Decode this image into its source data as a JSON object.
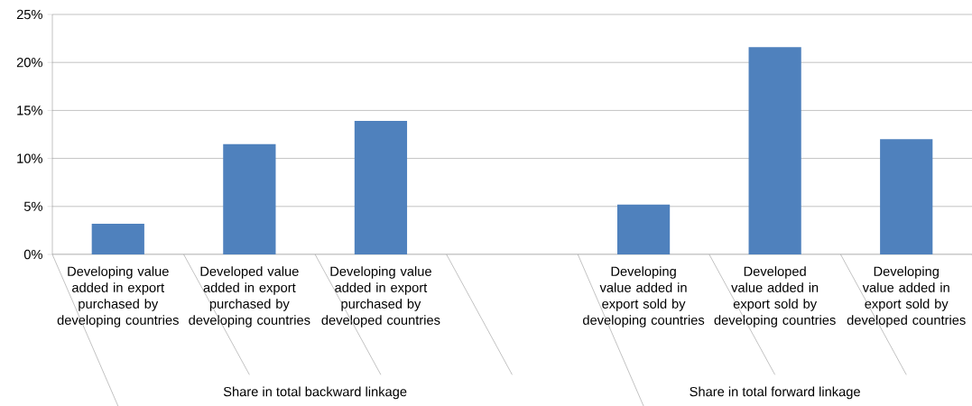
{
  "chart_data": {
    "type": "bar",
    "categories": [
      "Developing value added in export purchased by developing countries",
      "Developed value added in export purchased by developing countries",
      "Developing value added in export purchased by developed countries",
      null,
      "Developing value added in export sold by developing countries",
      "Developed value added in export sold by developing countries",
      "Developing value added in export sold by developed countries"
    ],
    "values": [
      3.2,
      11.5,
      13.9,
      null,
      5.2,
      21.6,
      12.0
    ],
    "color": "#4f81bd",
    "ylim": [
      0,
      25
    ],
    "yticks": [
      {
        "value": 0,
        "label": "0%"
      },
      {
        "value": 5,
        "label": "5%"
      },
      {
        "value": 10,
        "label": "10%"
      },
      {
        "value": 15,
        "label": "15%"
      },
      {
        "value": 20,
        "label": "20%"
      },
      {
        "value": 25,
        "label": "25%"
      }
    ],
    "grid": "y",
    "annotations": [
      "Share in total backward linkage",
      "Share in total forward linkage"
    ]
  }
}
